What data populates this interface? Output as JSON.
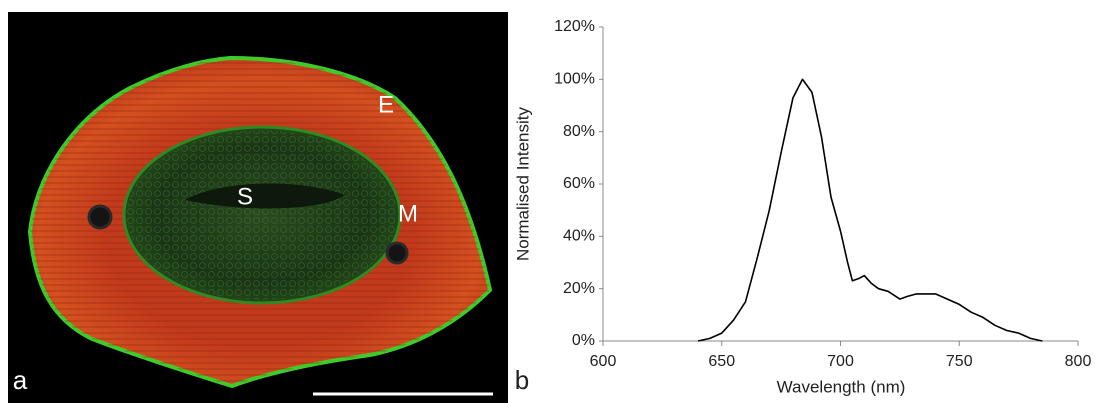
{
  "image": {
    "panel_label": "a",
    "labels": [
      "E",
      "S",
      "M"
    ]
  },
  "chart_data": {
    "type": "line",
    "panel_label": "b",
    "x_label": "Wavelength (nm)",
    "y_label": "Normalised Intensity",
    "color": "#000000",
    "x": [
      640,
      645,
      650,
      655,
      660,
      665,
      670,
      675,
      680,
      684,
      688,
      692,
      696,
      700,
      703,
      705,
      708,
      710,
      713,
      716,
      720,
      725,
      728,
      732,
      740,
      745,
      750,
      755,
      760,
      765,
      770,
      775,
      780,
      785
    ],
    "values": [
      0,
      1,
      3,
      8,
      15,
      32,
      50,
      72,
      93,
      100,
      95,
      78,
      55,
      42,
      30,
      23,
      24,
      25,
      22,
      20,
      19,
      16,
      17,
      18,
      18,
      16,
      14,
      11,
      9,
      6,
      4,
      3,
      1,
      0
    ],
    "xlim": [
      600,
      800
    ],
    "xticks": [
      600,
      650,
      700,
      750,
      800
    ],
    "ylim": [
      0,
      120
    ],
    "yticks": [
      {
        "value": 0,
        "label": "0%"
      },
      {
        "value": 20,
        "label": "20%"
      },
      {
        "value": 40,
        "label": "40%"
      },
      {
        "value": 60,
        "label": "60%"
      },
      {
        "value": 80,
        "label": "80%"
      },
      {
        "value": 100,
        "label": "100%"
      },
      {
        "value": 120,
        "label": "120%"
      }
    ],
    "grid": false
  }
}
